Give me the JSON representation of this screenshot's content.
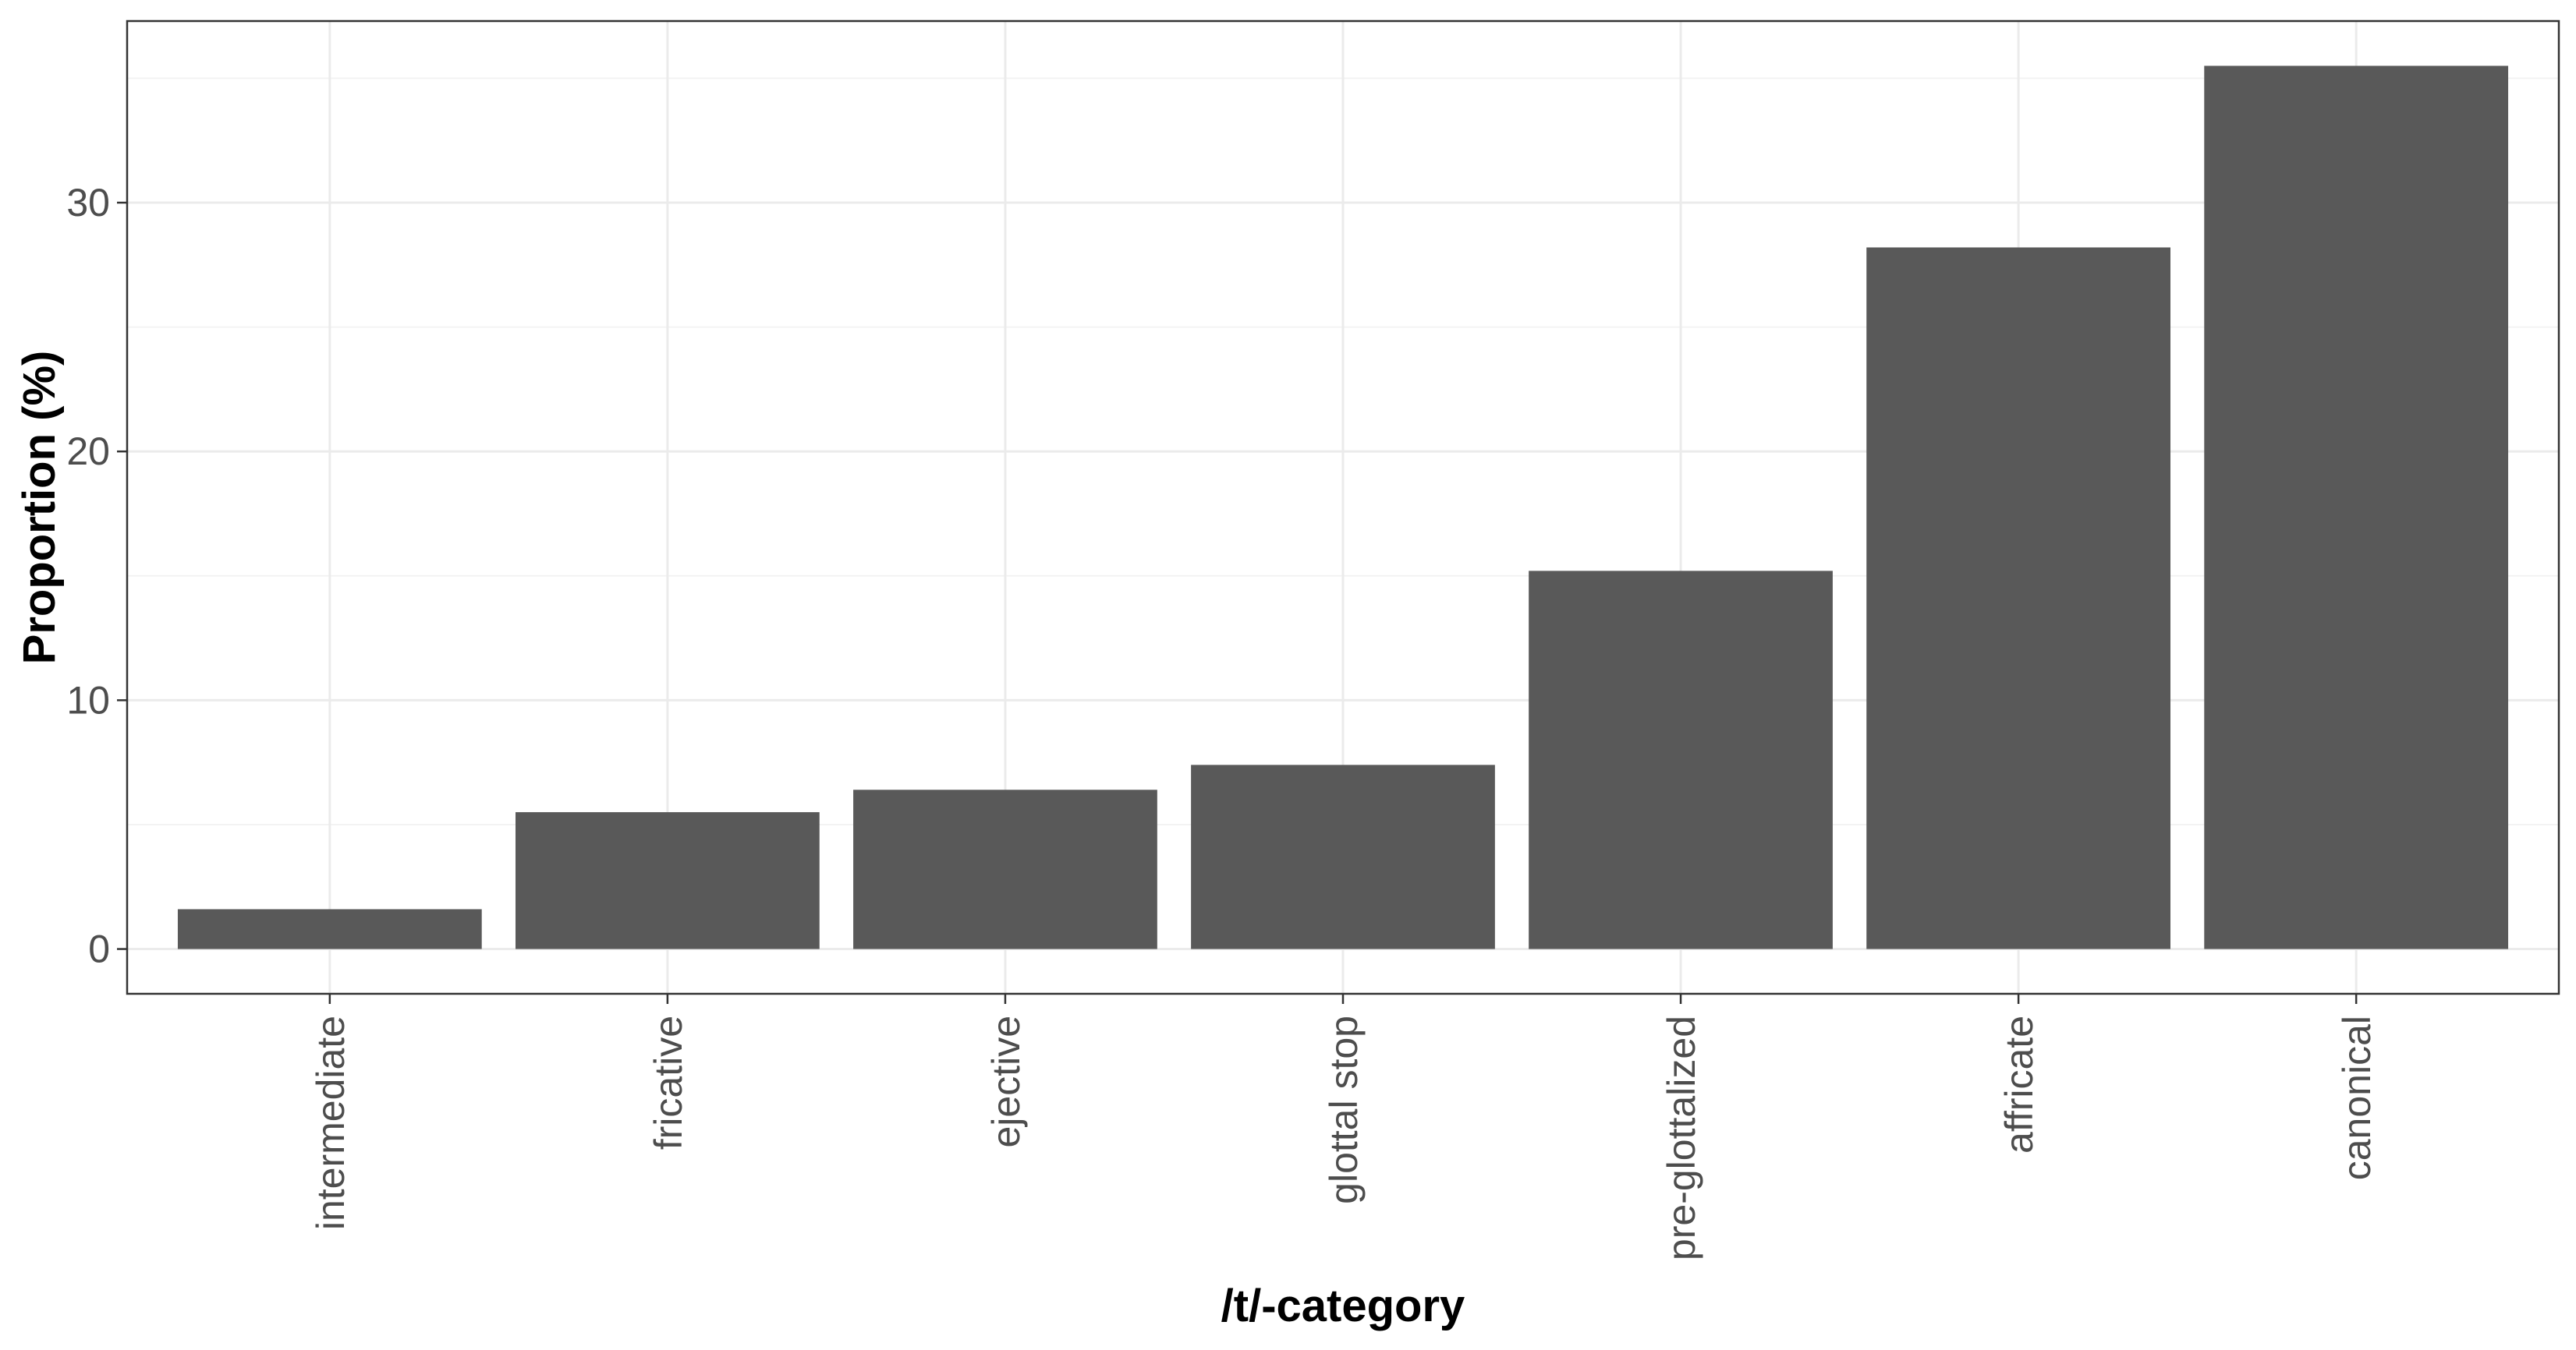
{
  "chart_data": {
    "type": "bar",
    "categories": [
      "intermediate",
      "fricative",
      "ejective",
      "glottal stop",
      "pre-glottalized",
      "affricate",
      "canonical"
    ],
    "values": [
      1.6,
      5.5,
      6.4,
      7.4,
      15.2,
      28.2,
      35.5
    ],
    "title": "",
    "xlabel": "/t/-category",
    "ylabel": "Proportion (%)",
    "ylim": [
      -1.8,
      37.3
    ],
    "yticks": [
      0,
      10,
      20,
      30
    ],
    "yticks_minor": [
      5,
      15,
      25,
      35
    ],
    "grid": true,
    "bar_color": "#595959",
    "panel_border_color": "#333333",
    "grid_color": "#ebebeb",
    "x_tick_label_rotation": "vertical"
  }
}
